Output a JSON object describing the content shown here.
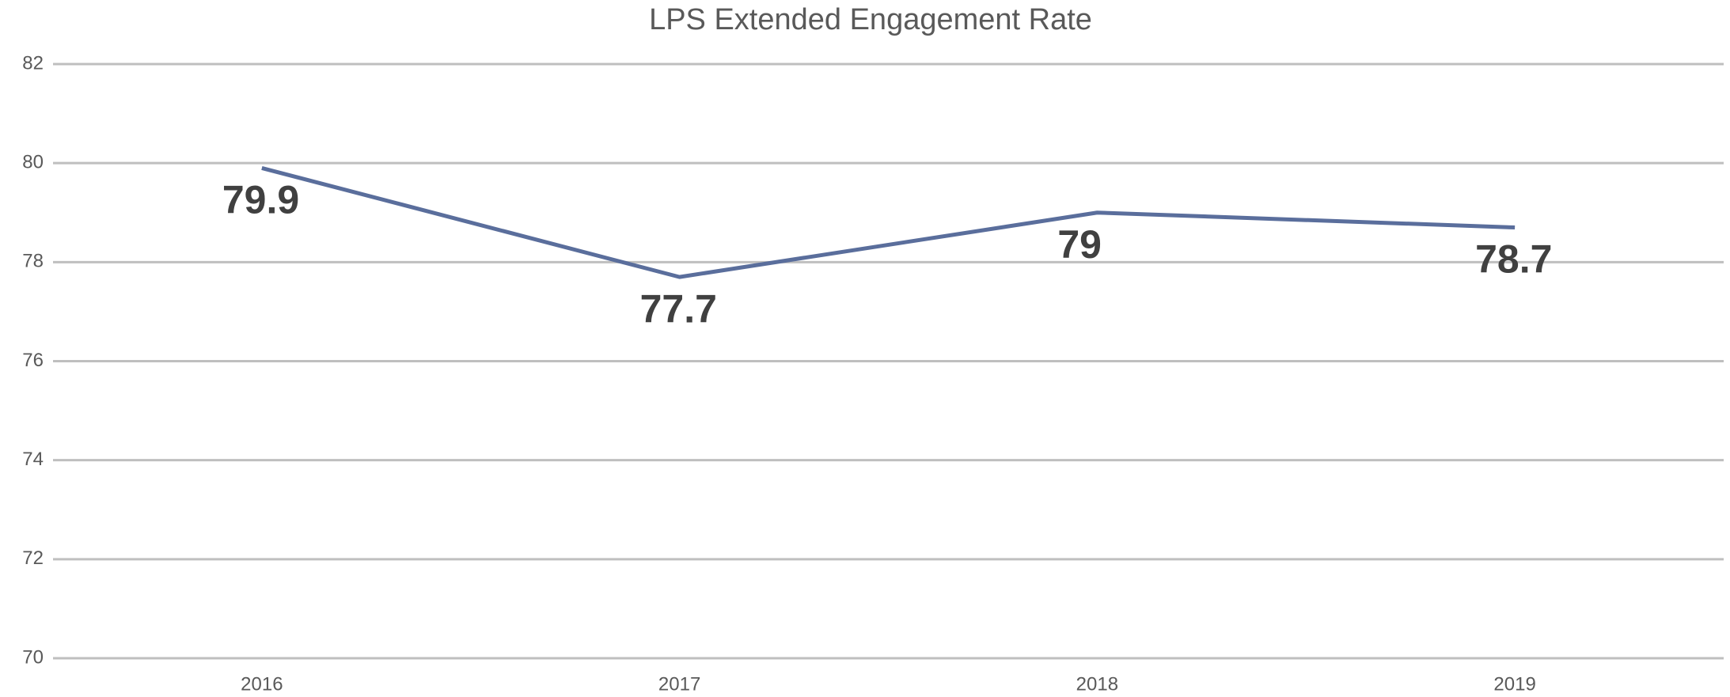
{
  "chart_data": {
    "type": "line",
    "title": "LPS Extended Engagement Rate",
    "categories": [
      "2016",
      "2017",
      "2018",
      "2019"
    ],
    "values": [
      79.9,
      77.7,
      79,
      78.7
    ],
    "color": "#5a6e9c",
    "ylim": [
      70,
      82
    ],
    "yticks": [
      70,
      72,
      74,
      76,
      78,
      80,
      82
    ],
    "grid": true
  }
}
